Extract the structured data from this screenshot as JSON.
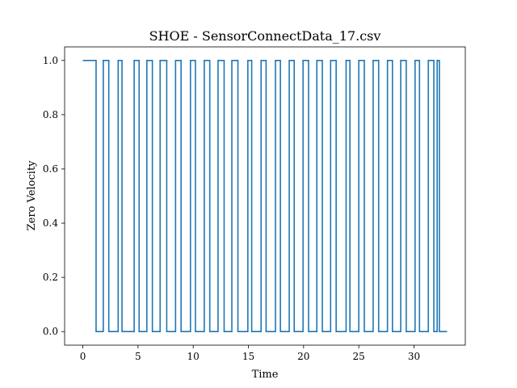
{
  "chart_data": {
    "type": "line",
    "title": "SHOE - SensorConnectData_17.csv",
    "xlabel": "Time",
    "ylabel": "Zero Velocity",
    "xlim": [
      -1.65,
      34.65
    ],
    "ylim": [
      -0.05,
      1.05
    ],
    "xticks": [
      0,
      5,
      10,
      15,
      20,
      25,
      30
    ],
    "yticks": [
      0.0,
      0.2,
      0.4,
      0.6,
      0.8,
      1.0
    ],
    "xtick_labels": [
      "0",
      "5",
      "10",
      "15",
      "20",
      "25",
      "30"
    ],
    "ytick_labels": [
      "0.0",
      "0.2",
      "0.4",
      "0.6",
      "0.8",
      "1.0"
    ],
    "grid": false,
    "series": [
      {
        "color": "#1f77b4",
        "x": [
          0.0,
          1.2,
          1.2,
          1.85,
          1.85,
          2.35,
          2.35,
          3.2,
          3.2,
          3.55,
          3.55,
          4.65,
          4.65,
          5.1,
          5.1,
          5.8,
          5.8,
          6.3,
          6.3,
          7.0,
          7.0,
          7.6,
          7.6,
          8.4,
          8.4,
          8.9,
          8.9,
          9.75,
          9.75,
          10.2,
          10.2,
          11.0,
          11.0,
          11.5,
          11.5,
          12.25,
          12.25,
          12.8,
          12.8,
          13.5,
          13.5,
          14.05,
          14.05,
          14.95,
          14.95,
          15.3,
          15.3,
          16.15,
          16.15,
          16.6,
          16.6,
          17.45,
          17.45,
          17.9,
          17.9,
          18.7,
          18.7,
          19.15,
          19.15,
          19.95,
          19.95,
          20.45,
          20.45,
          21.2,
          21.2,
          21.7,
          21.7,
          22.45,
          22.45,
          22.95,
          22.95,
          23.85,
          23.85,
          24.2,
          24.2,
          25.0,
          25.0,
          25.5,
          25.5,
          26.3,
          26.3,
          26.8,
          26.8,
          27.6,
          27.6,
          28.05,
          28.05,
          28.8,
          28.8,
          29.3,
          29.3,
          30.1,
          30.1,
          30.5,
          30.5,
          31.3,
          31.3,
          31.8,
          31.8,
          32.1,
          32.1,
          32.3,
          32.3,
          33.0
        ],
        "y": [
          1,
          1,
          0,
          0,
          1,
          1,
          0,
          0,
          1,
          1,
          0,
          0,
          1,
          1,
          0,
          0,
          1,
          1,
          0,
          0,
          1,
          1,
          0,
          0,
          1,
          1,
          0,
          0,
          1,
          1,
          0,
          0,
          1,
          1,
          0,
          0,
          1,
          1,
          0,
          0,
          1,
          1,
          0,
          0,
          1,
          1,
          0,
          0,
          1,
          1,
          0,
          0,
          1,
          1,
          0,
          0,
          1,
          1,
          0,
          0,
          1,
          1,
          0,
          0,
          1,
          1,
          0,
          0,
          1,
          1,
          0,
          0,
          1,
          1,
          0,
          0,
          1,
          1,
          0,
          0,
          1,
          1,
          0,
          0,
          1,
          1,
          0,
          0,
          1,
          1,
          0,
          0,
          1,
          1,
          0,
          0,
          1,
          1,
          0,
          0,
          1,
          1,
          0,
          0
        ]
      }
    ]
  }
}
